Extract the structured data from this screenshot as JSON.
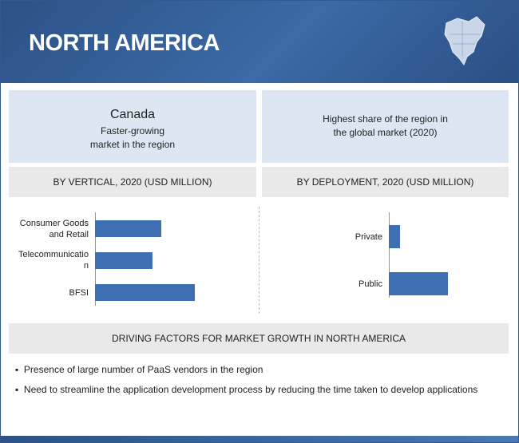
{
  "header": {
    "title": "NORTH AMERICA"
  },
  "highlights": [
    {
      "title": "Canada",
      "lines": [
        "Faster-growing",
        "market in the region"
      ]
    },
    {
      "title": null,
      "lines": [
        "Highest share of the region in",
        "the global market (2020)"
      ]
    }
  ],
  "chart_data": [
    {
      "type": "bar",
      "orientation": "horizontal",
      "title": "BY VERTICAL, 2020 (USD MILLION)",
      "categories": [
        "Consumer Goods and Retail",
        "Telecommunication",
        "BFSI"
      ],
      "values": [
        83,
        72,
        125
      ],
      "color": "#3f6fb3",
      "xlim": [
        0,
        150
      ]
    },
    {
      "type": "bar",
      "orientation": "horizontal",
      "title": "BY DEPLOYMENT,  2020 (USD MILLION)",
      "categories": [
        "Private",
        "Public"
      ],
      "values": [
        14,
        74
      ],
      "color": "#3f6fb3",
      "xlim": [
        0,
        150
      ]
    }
  ],
  "drivers": {
    "title": "DRIVING FACTORS FOR MARKET GROWTH IN NORTH AMERICA",
    "items": [
      "Presence of large number of PaaS vendors in the region",
      "Need to streamline the application development process by reducing the time taken to develop applications"
    ]
  }
}
